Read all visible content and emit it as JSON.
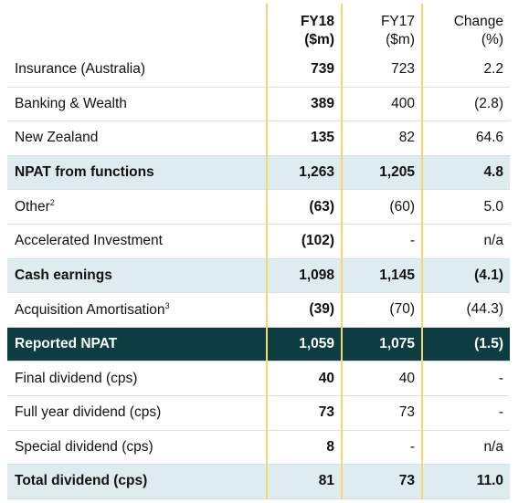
{
  "header": {
    "columns": [
      [
        "FY18",
        "($m)"
      ],
      [
        "FY17",
        "($m)"
      ],
      [
        "Change",
        "(%)"
      ]
    ]
  },
  "table": {
    "rows": [
      {
        "label": "Insurance (Australia)",
        "cells": [
          "739",
          "723",
          "2.2"
        ]
      },
      {
        "label": "Banking & Wealth",
        "cells": [
          "389",
          "400",
          "(2.8)"
        ]
      },
      {
        "label": "New Zealand",
        "cells": [
          "135",
          "82",
          "64.6"
        ]
      },
      {
        "label": "NPAT from functions",
        "cells": [
          "1,263",
          "1,205",
          "4.8"
        ]
      },
      {
        "label": "Other",
        "sup": "2",
        "cells": [
          "(63)",
          "(60)",
          "5.0"
        ]
      },
      {
        "label": "Accelerated Investment",
        "cells": [
          "(102)",
          "-",
          "n/a"
        ]
      },
      {
        "label": "Cash earnings",
        "cells": [
          "1,098",
          "1,145",
          "(4.1)"
        ]
      },
      {
        "label": "Acquisition Amortisation",
        "sup": "3",
        "cells": [
          "(39)",
          "(70)",
          "(44.3)"
        ]
      },
      {
        "label": "Reported NPAT",
        "cells": [
          "1,059",
          "1,075",
          "(1.5)"
        ]
      },
      {
        "label": "Final dividend (cps)",
        "cells": [
          "40",
          "40",
          "-"
        ]
      },
      {
        "label": "Full year dividend (cps)",
        "cells": [
          "73",
          "73",
          "-"
        ]
      },
      {
        "label": "Special dividend (cps)",
        "cells": [
          "8",
          "-",
          "n/a"
        ]
      },
      {
        "label": "Total dividend (cps)",
        "cells": [
          "81",
          "73",
          "11.0"
        ]
      }
    ]
  }
}
